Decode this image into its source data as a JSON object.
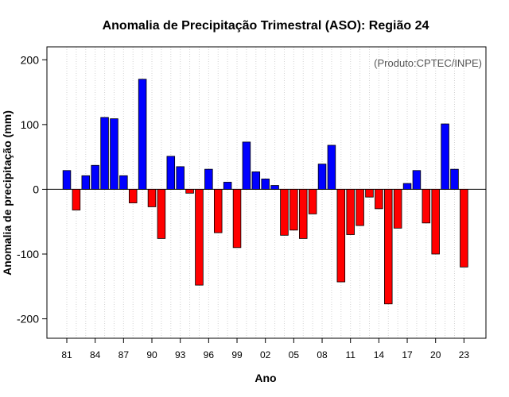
{
  "chart_data": {
    "type": "bar",
    "title": "Anomalia de Precipitação Trimestral (ASO): Região 24",
    "xlabel": "Ano",
    "ylabel": "Anomalia de precipitação (mm)",
    "source_note": "(Produto:CPTEC/INPE)",
    "ylim": [
      -230,
      220
    ],
    "yticks": [
      -200,
      -100,
      0,
      100,
      200
    ],
    "yticks_labels": [
      "-200",
      "-100",
      "0",
      "100",
      "200"
    ],
    "grid": "vertical dotted lines at each year",
    "colors": {
      "positive": "#0000ff",
      "negative": "#ff0000"
    },
    "categories": [
      "1981",
      "1982",
      "1983",
      "1984",
      "1985",
      "1986",
      "1987",
      "1988",
      "1989",
      "1990",
      "1991",
      "1992",
      "1993",
      "1994",
      "1995",
      "1996",
      "1997",
      "1998",
      "1999",
      "2000",
      "2001",
      "2002",
      "2003",
      "2004",
      "2005",
      "2006",
      "2007",
      "2008",
      "2009",
      "2010",
      "2011",
      "2012",
      "2013",
      "2014",
      "2015",
      "2016",
      "2017",
      "2018",
      "2019",
      "2020",
      "2021",
      "2022",
      "2023"
    ],
    "values": [
      29,
      -32,
      21,
      37,
      111,
      109,
      21,
      -21,
      170,
      -27,
      -76,
      51,
      35,
      -6,
      -148,
      31,
      -67,
      11,
      -90,
      73,
      27,
      16,
      6,
      -71,
      -63,
      -76,
      -38,
      39,
      68,
      -143,
      -70,
      -56,
      -12,
      -30,
      -177,
      -60,
      9,
      29,
      -52,
      -100,
      101,
      31,
      -120
    ],
    "xtick_labels": [
      "81",
      "84",
      "87",
      "90",
      "93",
      "96",
      "99",
      "02",
      "05",
      "08",
      "11",
      "14",
      "17",
      "20",
      "23"
    ],
    "xtick_years": [
      "1981",
      "1984",
      "1987",
      "1990",
      "1993",
      "1996",
      "1999",
      "2002",
      "2005",
      "2008",
      "2011",
      "2014",
      "2017",
      "2020",
      "2023"
    ]
  }
}
